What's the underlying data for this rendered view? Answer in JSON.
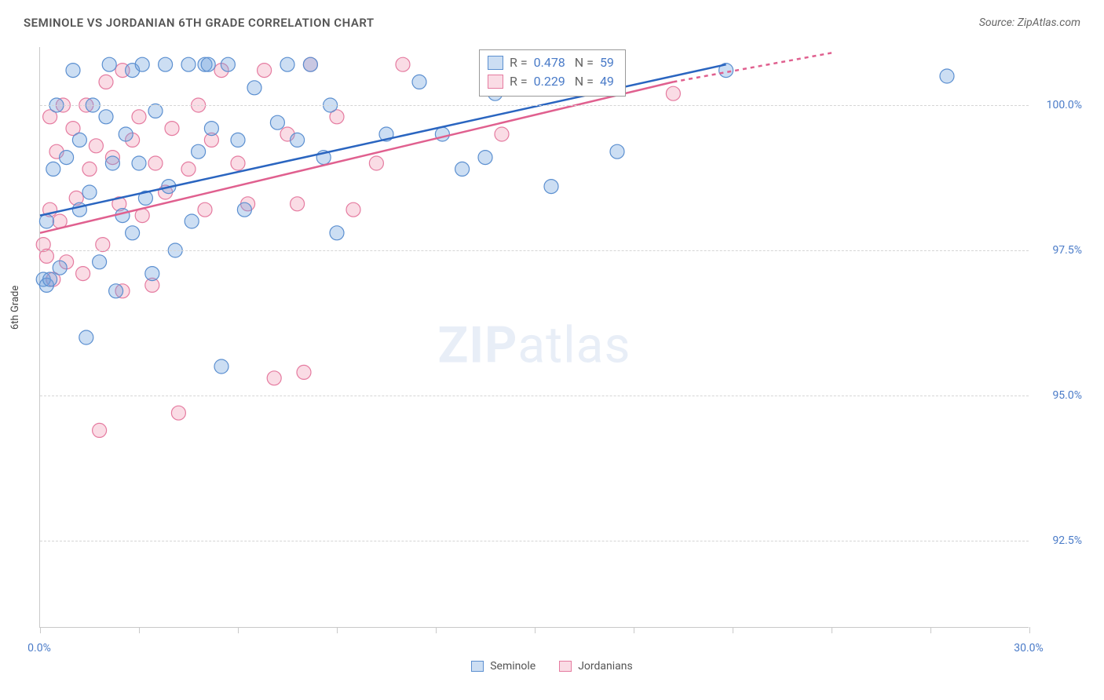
{
  "title": "SEMINOLE VS JORDANIAN 6TH GRADE CORRELATION CHART",
  "source": "Source: ZipAtlas.com",
  "ylabel": "6th Grade",
  "watermark": {
    "bold": "ZIP",
    "rest": "atlas"
  },
  "colors": {
    "blue_fill": "rgba(110,160,220,0.35)",
    "blue_stroke": "#5b8fd0",
    "pink_fill": "rgba(240,140,170,0.30)",
    "pink_stroke": "#e57ba0",
    "blue_line": "#2a65c0",
    "pink_line": "#e0608f",
    "tick_text": "#4a7bc8",
    "grid": "#d5d5d5"
  },
  "chart": {
    "type": "scatter",
    "xlim": [
      0,
      30
    ],
    "ylim": [
      91.0,
      101.0
    ],
    "yticks": [
      92.5,
      95.0,
      97.5,
      100.0
    ],
    "ytick_labels": [
      "92.5%",
      "95.0%",
      "97.5%",
      "100.0%"
    ],
    "xticks": [
      0,
      3,
      6,
      9,
      12,
      15,
      18,
      21,
      24,
      27,
      30
    ],
    "xtick_labels": {
      "0": "0.0%",
      "30": "30.0%"
    },
    "marker_r": 9,
    "line_width": 2.5,
    "blue_line": {
      "x1": 0,
      "y1": 98.1,
      "x2": 20.8,
      "y2": 100.7
    },
    "pink_line": {
      "x1": 0,
      "y1": 97.8,
      "x2": 19.2,
      "y2": 100.4,
      "x_dash_end": 24.0,
      "y_dash_end": 100.9
    }
  },
  "stats": {
    "blue": {
      "R": "0.478",
      "N": "59"
    },
    "pink": {
      "R": "0.229",
      "N": "49"
    }
  },
  "legend": {
    "series1": "Seminole",
    "series2": "Jordanians"
  },
  "points_blue": [
    [
      0.1,
      97.0
    ],
    [
      0.2,
      96.9
    ],
    [
      0.2,
      98.0
    ],
    [
      0.4,
      98.9
    ],
    [
      0.5,
      100.0
    ],
    [
      0.6,
      97.2
    ],
    [
      0.8,
      99.1
    ],
    [
      1.0,
      100.6
    ],
    [
      1.2,
      99.4
    ],
    [
      1.2,
      98.2
    ],
    [
      1.4,
      96.0
    ],
    [
      1.5,
      98.5
    ],
    [
      1.6,
      100.0
    ],
    [
      1.8,
      97.3
    ],
    [
      2.0,
      99.8
    ],
    [
      2.1,
      100.7
    ],
    [
      2.2,
      99.0
    ],
    [
      2.3,
      96.8
    ],
    [
      2.5,
      98.1
    ],
    [
      2.6,
      99.5
    ],
    [
      2.8,
      100.6
    ],
    [
      2.8,
      97.8
    ],
    [
      3.0,
      99.0
    ],
    [
      3.1,
      100.7
    ],
    [
      3.2,
      98.4
    ],
    [
      3.4,
      97.1
    ],
    [
      3.5,
      99.9
    ],
    [
      3.8,
      100.7
    ],
    [
      3.9,
      98.6
    ],
    [
      4.1,
      97.5
    ],
    [
      4.5,
      100.7
    ],
    [
      4.6,
      98.0
    ],
    [
      4.8,
      99.2
    ],
    [
      5.0,
      100.7
    ],
    [
      5.1,
      100.7
    ],
    [
      5.2,
      99.6
    ],
    [
      5.5,
      95.5
    ],
    [
      5.7,
      100.7
    ],
    [
      6.0,
      99.4
    ],
    [
      6.2,
      98.2
    ],
    [
      6.5,
      100.3
    ],
    [
      7.2,
      99.7
    ],
    [
      7.5,
      100.7
    ],
    [
      7.8,
      99.4
    ],
    [
      8.2,
      100.7
    ],
    [
      8.6,
      99.1
    ],
    [
      8.8,
      100.0
    ],
    [
      9.0,
      97.8
    ],
    [
      10.5,
      99.5
    ],
    [
      11.5,
      100.4
    ],
    [
      12.2,
      99.5
    ],
    [
      12.8,
      98.9
    ],
    [
      13.5,
      99.1
    ],
    [
      13.8,
      100.2
    ],
    [
      15.5,
      98.6
    ],
    [
      17.5,
      99.2
    ],
    [
      20.8,
      100.6
    ],
    [
      27.5,
      100.5
    ],
    [
      0.3,
      97.0
    ]
  ],
  "points_pink": [
    [
      0.1,
      97.6
    ],
    [
      0.2,
      97.4
    ],
    [
      0.3,
      98.2
    ],
    [
      0.3,
      99.8
    ],
    [
      0.4,
      97.0
    ],
    [
      0.5,
      99.2
    ],
    [
      0.6,
      98.0
    ],
    [
      0.7,
      100.0
    ],
    [
      0.8,
      97.3
    ],
    [
      1.0,
      99.6
    ],
    [
      1.1,
      98.4
    ],
    [
      1.3,
      97.1
    ],
    [
      1.4,
      100.0
    ],
    [
      1.5,
      98.9
    ],
    [
      1.7,
      99.3
    ],
    [
      1.8,
      94.4
    ],
    [
      1.9,
      97.6
    ],
    [
      2.0,
      100.4
    ],
    [
      2.2,
      99.1
    ],
    [
      2.4,
      98.3
    ],
    [
      2.5,
      96.8
    ],
    [
      2.5,
      100.6
    ],
    [
      2.8,
      99.4
    ],
    [
      3.0,
      99.8
    ],
    [
      3.1,
      98.1
    ],
    [
      3.4,
      96.9
    ],
    [
      3.5,
      99.0
    ],
    [
      3.8,
      98.5
    ],
    [
      4.0,
      99.6
    ],
    [
      4.2,
      94.7
    ],
    [
      4.5,
      98.9
    ],
    [
      4.8,
      100.0
    ],
    [
      5.0,
      98.2
    ],
    [
      5.2,
      99.4
    ],
    [
      5.5,
      100.6
    ],
    [
      6.0,
      99.0
    ],
    [
      6.3,
      98.3
    ],
    [
      6.8,
      100.6
    ],
    [
      7.1,
      95.3
    ],
    [
      7.5,
      99.5
    ],
    [
      7.8,
      98.3
    ],
    [
      8.0,
      95.4
    ],
    [
      8.2,
      100.7
    ],
    [
      9.0,
      99.8
    ],
    [
      9.5,
      98.2
    ],
    [
      10.2,
      99.0
    ],
    [
      11.0,
      100.7
    ],
    [
      14.0,
      99.5
    ],
    [
      19.2,
      100.2
    ]
  ]
}
